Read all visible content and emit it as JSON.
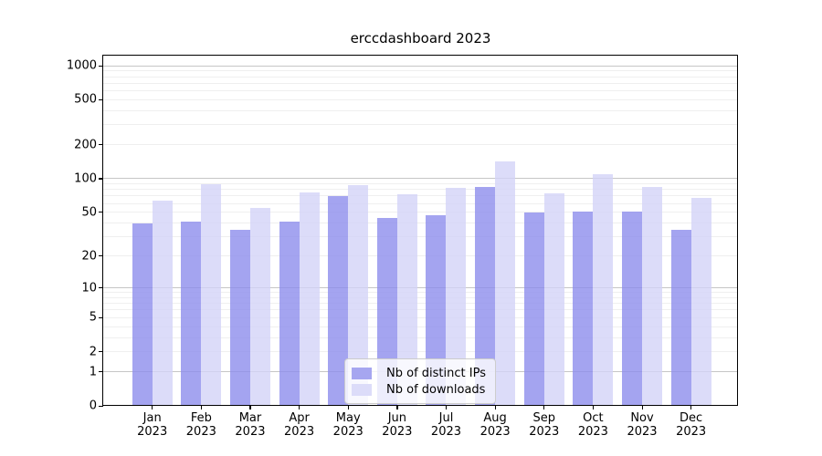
{
  "title": "erccdashboard 2023",
  "colors": {
    "grid_major": "#c6c6c6",
    "grid_minor": "#efefef",
    "axis": "#000000",
    "text": "#000000",
    "background": "#ffffff",
    "legend_border": "#cccccc",
    "legend_background": "rgba(255,255,255,0.8)",
    "series_dark": "#a6a6f0",
    "series_light": "#dcdcf9"
  },
  "chart_data": {
    "type": "bar",
    "title": "erccdashboard 2023",
    "year": "2023",
    "months": [
      "Jan",
      "Feb",
      "Mar",
      "Apr",
      "May",
      "Jun",
      "Jul",
      "Aug",
      "Sep",
      "Oct",
      "Nov",
      "Dec"
    ],
    "series": [
      {
        "name": "Nb of distinct IPs",
        "swatch": "#a6a6f0",
        "fill": "rgba(138,138,236,0.78)",
        "values": [
          40,
          41,
          35,
          41,
          70,
          44,
          47,
          85,
          50,
          51,
          51,
          35
        ]
      },
      {
        "name": "Nb of downloads",
        "swatch": "#dcdcf9",
        "fill": "rgba(210,210,247,0.78)",
        "values": [
          64,
          89,
          55,
          75,
          87,
          72,
          82,
          142,
          74,
          110,
          85,
          67
        ]
      }
    ],
    "y_axis": {
      "scale": "log10(value+1)",
      "ticks": [
        0,
        1,
        2,
        5,
        10,
        20,
        50,
        100,
        200,
        500,
        1000
      ],
      "range": [
        0,
        1000
      ],
      "grid_major_at": [
        1,
        10,
        100,
        1000
      ],
      "grid_minor_at": "2..9 per decade"
    },
    "x_axis": {
      "tick_label_line1": "month",
      "tick_label_line2": "year"
    },
    "legend_position": "bottom-center",
    "grid": true
  }
}
